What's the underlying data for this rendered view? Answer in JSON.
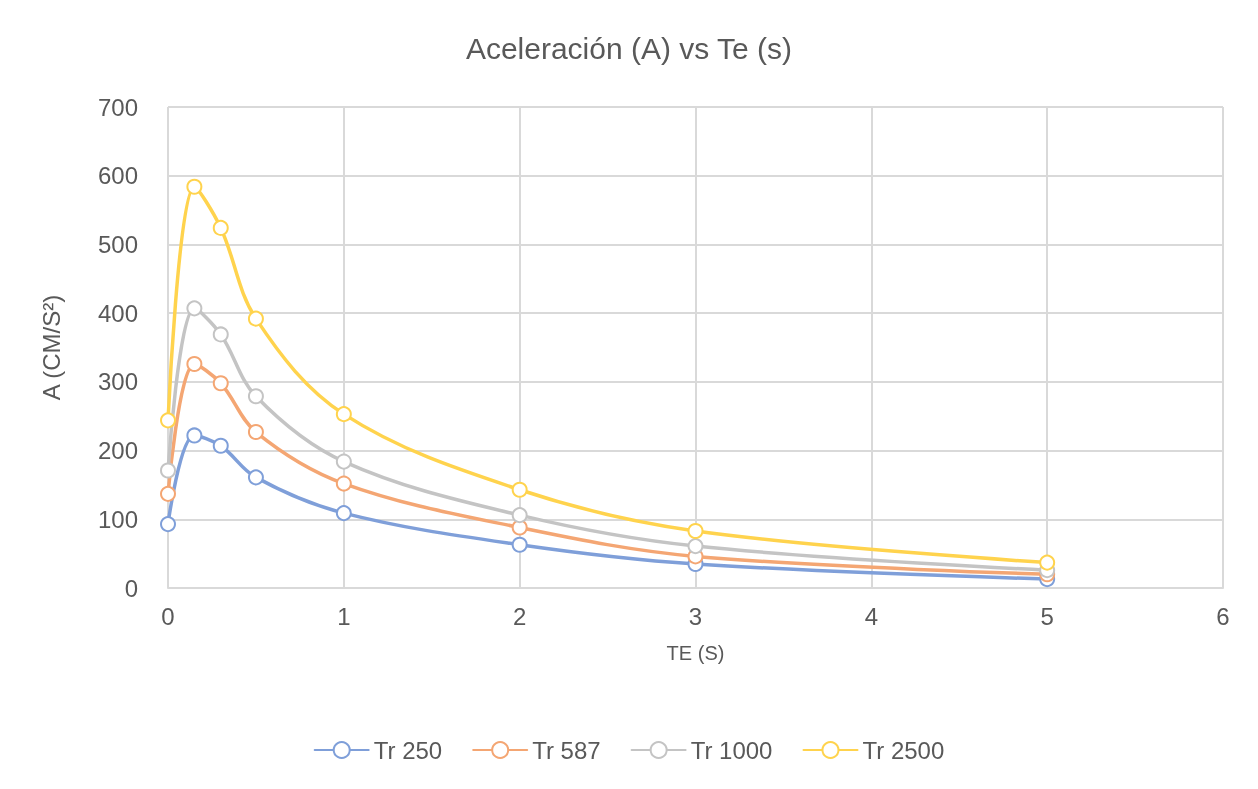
{
  "chart_data": {
    "type": "line",
    "title": "Aceleración (A) vs Te (s)",
    "xlabel": "TE (S)",
    "ylabel": "A (CM/S²)",
    "x": [
      0,
      0.15,
      0.3,
      0.5,
      1,
      2,
      3,
      5
    ],
    "series": [
      {
        "name": "Tr 250",
        "color": "#7f9fd9",
        "values": [
          93,
          222,
          207,
          161,
          109,
          63,
          35,
          13
        ]
      },
      {
        "name": "Tr 587",
        "color": "#f4a673",
        "values": [
          137,
          326,
          298,
          227,
          152,
          88,
          46,
          20
        ]
      },
      {
        "name": "Tr 1000",
        "color": "#c4c4c4",
        "values": [
          171,
          407,
          369,
          279,
          184,
          106,
          61,
          26
        ]
      },
      {
        "name": "Tr 2500",
        "color": "#ffd34d",
        "values": [
          244,
          584,
          524,
          392,
          253,
          143,
          83,
          37
        ]
      }
    ],
    "xlim": [
      0,
      6
    ],
    "xticks": [
      0,
      1,
      2,
      3,
      4,
      5,
      6
    ],
    "ylim": [
      0,
      700
    ],
    "yticks": [
      0,
      100,
      200,
      300,
      400,
      500,
      600,
      700
    ],
    "grid": true,
    "legend": "bottom",
    "marker": "circle",
    "line_style": "solid"
  }
}
